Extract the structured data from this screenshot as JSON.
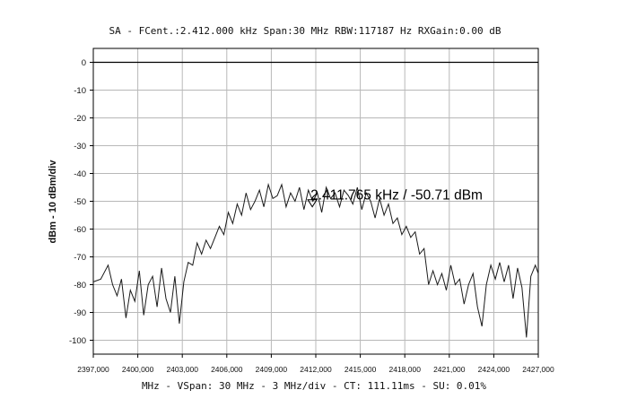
{
  "header": {
    "title": "SA - FCent.:2.412.000 kHz Span:30 MHz RBW:117187 Hz RXGain:0.00 dB"
  },
  "footer": {
    "status": "MHz - VSpan: 30 MHz - 3 MHz/div - CT: 111.11ms - SU: 0.01%"
  },
  "chart_data": {
    "type": "line",
    "title": "SA - FCent.:2.412.000 kHz Span:30 MHz RBW:117187 Hz RXGain:0.00 dB",
    "xlabel": "MHz - VSpan: 30 MHz - 3 MHz/div - CT: 111.11ms - SU: 0.01%",
    "ylabel": "dBm - 10 dBm/div",
    "xlim": [
      2397,
      2427
    ],
    "ylim": [
      -105,
      5
    ],
    "grid": true,
    "x_ticks": [
      2397,
      2400,
      2403,
      2406,
      2409,
      2412,
      2415,
      2418,
      2421,
      2424,
      2427
    ],
    "x_tick_labels": [
      "2397,000",
      "2400,000",
      "2403,000",
      "2406,000",
      "2409,000",
      "2412,000",
      "2415,000",
      "2418,000",
      "2421,000",
      "2424,000",
      "2427,000"
    ],
    "y_ticks": [
      0,
      -10,
      -20,
      -30,
      -40,
      -50,
      -60,
      -70,
      -80,
      -90,
      -100
    ],
    "y_tick_labels": [
      "0",
      "-10",
      "-20",
      "-30",
      "-40",
      "-50",
      "-60",
      "-70",
      "-80",
      "-90",
      "-100"
    ],
    "marker": {
      "x": 2411.765,
      "y": -50.71,
      "label": "2.411.765 kHz / -50.71 dBm"
    },
    "reference_line": {
      "y": 0
    },
    "colors": {
      "trace": "#1a1a1a",
      "grid": "#b8b8b8",
      "axis": "#000000"
    },
    "series": [
      {
        "x": [
          2397.0,
          2397.5,
          2398.0,
          2398.3,
          2398.6,
          2398.9,
          2399.2,
          2399.5,
          2399.8,
          2400.1,
          2400.4,
          2400.7,
          2401.0,
          2401.3,
          2401.6,
          2401.9,
          2402.2,
          2402.5,
          2402.8,
          2403.1,
          2403.4,
          2403.7,
          2404.0,
          2404.3,
          2404.6,
          2404.9,
          2405.2,
          2405.5,
          2405.8,
          2406.1,
          2406.4,
          2406.7,
          2407.0,
          2407.3,
          2407.6,
          2407.9,
          2408.2,
          2408.5,
          2408.8,
          2409.1,
          2409.4,
          2409.7,
          2410.0,
          2410.3,
          2410.6,
          2410.9,
          2411.2,
          2411.5,
          2411.8,
          2412.1,
          2412.4,
          2412.7,
          2413.0,
          2413.3,
          2413.6,
          2413.9,
          2414.2,
          2414.5,
          2414.8,
          2415.1,
          2415.4,
          2415.7,
          2416.0,
          2416.3,
          2416.6,
          2416.9,
          2417.2,
          2417.5,
          2417.8,
          2418.1,
          2418.4,
          2418.7,
          2419.0,
          2419.3,
          2419.6,
          2419.9,
          2420.2,
          2420.5,
          2420.8,
          2421.1,
          2421.4,
          2421.7,
          2422.0,
          2422.3,
          2422.6,
          2422.9,
          2423.2,
          2423.5,
          2423.8,
          2424.1,
          2424.4,
          2424.7,
          2425.0,
          2425.3,
          2425.6,
          2425.9,
          2426.2,
          2426.5,
          2426.8,
          2427.0
        ],
        "y": [
          -79,
          -78,
          -73,
          -80,
          -84,
          -78,
          -92,
          -82,
          -86,
          -75,
          -91,
          -80,
          -77,
          -88,
          -74,
          -85,
          -90,
          -77,
          -94,
          -79,
          -72,
          -73,
          -65,
          -69,
          -64,
          -67,
          -63,
          -59,
          -62,
          -54,
          -58,
          -51,
          -55,
          -47,
          -53,
          -50,
          -46,
          -52,
          -44,
          -49,
          -48,
          -44,
          -52,
          -47,
          -50,
          -45,
          -53,
          -46,
          -50,
          -47,
          -54,
          -45,
          -49,
          -47,
          -52,
          -46,
          -48,
          -51,
          -45,
          -53,
          -47,
          -50,
          -56,
          -49,
          -55,
          -51,
          -58,
          -56,
          -62,
          -59,
          -63,
          -61,
          -69,
          -67,
          -80,
          -75,
          -80,
          -76,
          -82,
          -73,
          -80,
          -78,
          -87,
          -80,
          -76,
          -88,
          -95,
          -80,
          -73,
          -78,
          -72,
          -79,
          -73,
          -85,
          -74,
          -81,
          -99,
          -77,
          -73,
          -76
        ]
      }
    ]
  }
}
